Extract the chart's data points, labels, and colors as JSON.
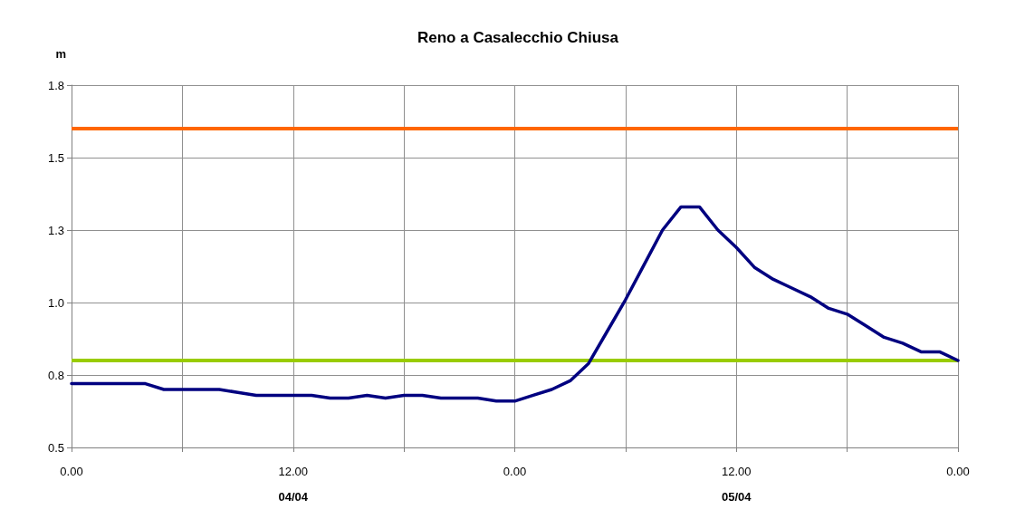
{
  "chart_data": {
    "type": "line",
    "title": "Reno a Casalecchio Chiusa",
    "ylabel": "m",
    "categories": [
      "0.00",
      null,
      null,
      null,
      null,
      null,
      null,
      null,
      null,
      null,
      null,
      null,
      "12.00\n04/04",
      null,
      null,
      null,
      null,
      null,
      null,
      null,
      null,
      null,
      null,
      null,
      "0.00",
      null,
      null,
      null,
      null,
      null,
      null,
      null,
      null,
      null,
      null,
      null,
      "12.00\n05/04",
      null,
      null,
      null,
      null,
      null,
      null,
      null,
      null,
      null,
      null,
      null,
      "0.00"
    ],
    "series": [
      {
        "color": "#000080",
        "values": [
          0.72,
          0.72,
          0.72,
          0.72,
          0.72,
          0.7,
          0.7,
          0.7,
          0.7,
          0.69,
          0.68,
          0.68,
          0.68,
          0.68,
          0.67,
          0.67,
          0.68,
          0.67,
          0.68,
          0.68,
          0.67,
          0.67,
          0.67,
          0.66,
          0.66,
          0.68,
          0.7,
          0.73,
          0.79,
          0.9,
          1.01,
          1.13,
          1.25,
          1.33,
          1.33,
          1.25,
          1.19,
          1.12,
          1.08,
          1.05,
          1.02,
          0.98,
          0.96,
          0.92,
          0.88,
          0.86,
          0.83,
          0.83,
          0.8
        ]
      }
    ],
    "ylim": [
      0.5,
      1.75
    ],
    "yticks": [
      {
        "value": 0.5,
        "label": "0.5"
      },
      {
        "value": 0.75,
        "label": "0.8"
      },
      {
        "value": 1.0,
        "label": "1.0"
      },
      {
        "value": 1.25,
        "label": "1.3"
      },
      {
        "value": 1.5,
        "label": "1.5"
      },
      {
        "value": 1.75,
        "label": "1.8"
      }
    ],
    "ref_lines": [
      {
        "axis": "y",
        "value": 1.6,
        "color": "#ff6600"
      },
      {
        "axis": "y",
        "value": 0.8,
        "color": "#99cc00"
      }
    ],
    "grid": true,
    "marker": "none",
    "line_style": "solid"
  }
}
